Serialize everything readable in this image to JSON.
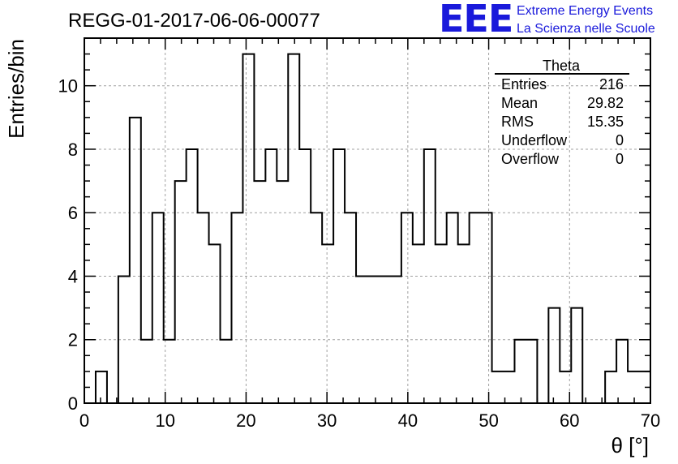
{
  "header": {
    "run_id": "REGG-01-2017-06-06-00077",
    "logo_text": "EEE",
    "brand_line1": "Extreme Energy Events",
    "brand_line2": "La Scienza nelle Scuole",
    "logo_color": "#1a1adb"
  },
  "stats_box": {
    "title": "Theta",
    "rows": [
      {
        "label": "Entries",
        "value": "216"
      },
      {
        "label": "Mean",
        "value": "29.82"
      },
      {
        "label": "RMS",
        "value": "15.35"
      },
      {
        "label": "Underflow",
        "value": "0"
      },
      {
        "label": "Overflow",
        "value": "0"
      }
    ]
  },
  "chart_data": {
    "type": "bar",
    "histogram": true,
    "xlabel": "θ [°]",
    "ylabel": "Entries/bin",
    "xlim": [
      0,
      70
    ],
    "ylim": [
      0,
      11.5
    ],
    "xticks": [
      0,
      10,
      20,
      30,
      40,
      50,
      60,
      70
    ],
    "yticks": [
      0,
      2,
      4,
      6,
      8,
      10
    ],
    "grid": true,
    "bin_edges": [
      0,
      1.4,
      2.8,
      4.2,
      5.6,
      7.0,
      8.4,
      9.8,
      11.2,
      12.6,
      14.0,
      15.4,
      16.8,
      18.2,
      19.6,
      21.0,
      22.4,
      23.8,
      25.2,
      26.6,
      28.0,
      29.4,
      30.8,
      32.2,
      33.6,
      35.0,
      36.4,
      37.8,
      39.2,
      40.6,
      42.0,
      43.4,
      44.8,
      46.2,
      47.6,
      49.0,
      50.4,
      51.8,
      53.2,
      54.6,
      56.0,
      57.4,
      58.8,
      60.2,
      61.6,
      63.0,
      64.4,
      65.8,
      67.2,
      68.6,
      70.0
    ],
    "values": [
      0,
      1,
      0,
      4,
      9,
      2,
      6,
      2,
      7,
      8,
      6,
      5,
      2,
      6,
      11,
      7,
      8,
      7,
      11,
      8,
      6,
      5,
      8,
      6,
      4,
      4,
      4,
      4,
      6,
      5,
      8,
      5,
      6,
      5,
      6,
      6,
      1,
      1,
      2,
      2,
      0,
      3,
      1,
      3,
      0,
      0,
      1,
      2,
      1,
      1
    ],
    "line_color": "#000000",
    "grid_color": "#a0a0a0"
  }
}
